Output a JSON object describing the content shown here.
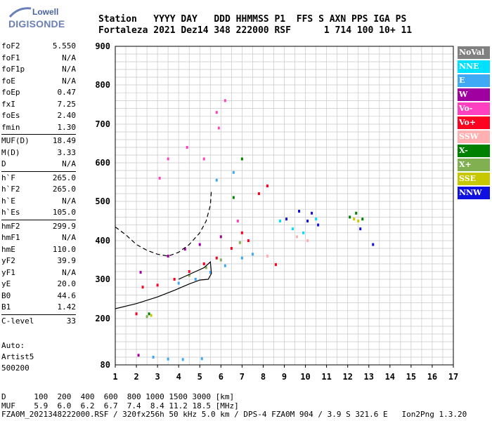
{
  "logo": {
    "line1": "Lowell",
    "line2": "DIGISONDE"
  },
  "header": {
    "line1": "Station   YYYY DAY   DDD HHMMSS P1  FFS S AXN PPS IGA PS",
    "line2": "Fortaleza 2021 Dez14 348 222000 RSF      1 714 100 10+ 11"
  },
  "params": {
    "group1": [
      {
        "name": "foF2",
        "value": "5.550"
      },
      {
        "name": "foF1",
        "value": "N/A"
      },
      {
        "name": "foF1p",
        "value": "N/A"
      },
      {
        "name": "foE",
        "value": "N/A"
      },
      {
        "name": "foEp",
        "value": "0.47"
      },
      {
        "name": "fxI",
        "value": "7.25"
      },
      {
        "name": "foEs",
        "value": "2.40"
      },
      {
        "name": "fmin",
        "value": "1.30"
      }
    ],
    "group2": [
      {
        "name": "MUF(D)",
        "value": "18.49"
      },
      {
        "name": "M(D)",
        "value": "3.33"
      },
      {
        "name": "D",
        "value": "N/A"
      }
    ],
    "group3": [
      {
        "name": "h`F",
        "value": "265.0"
      },
      {
        "name": "h`F2",
        "value": "265.0"
      },
      {
        "name": "h`E",
        "value": "N/A"
      },
      {
        "name": "h`Es",
        "value": "105.0"
      }
    ],
    "group4": [
      {
        "name": "hmF2",
        "value": "299.9"
      },
      {
        "name": "hmF1",
        "value": "N/A"
      },
      {
        "name": "hmE",
        "value": "110.0"
      },
      {
        "name": "yF2",
        "value": "39.9"
      },
      {
        "name": "yF1",
        "value": "N/A"
      },
      {
        "name": "yE",
        "value": "20.0"
      },
      {
        "name": "B0",
        "value": "44.6"
      },
      {
        "name": "B1",
        "value": "1.42"
      }
    ],
    "group5": [
      {
        "name": "C-level",
        "value": "33"
      }
    ]
  },
  "auto": {
    "line1": "Auto:",
    "line2": "Artist5",
    "line3": "500200"
  },
  "legend": [
    {
      "label": "NoVal",
      "color": "#808080"
    },
    {
      "label": "NNE",
      "color": "#00e0ff"
    },
    {
      "label": "E",
      "color": "#3fa9f5"
    },
    {
      "label": "W",
      "color": "#a000a0"
    },
    {
      "label": "Vo-",
      "color": "#ff40c0"
    },
    {
      "label": "Vo+",
      "color": "#ff0020"
    },
    {
      "label": "SSW",
      "color": "#ffb0b0"
    },
    {
      "label": "X-",
      "color": "#008000"
    },
    {
      "label": "X+",
      "color": "#80b050"
    },
    {
      "label": "SSE",
      "color": "#c8c800"
    },
    {
      "label": "NNW",
      "color": "#1010e0"
    }
  ],
  "footer": {
    "line1": "D      100  200  400  600  800 1000 1500 3000 [km]",
    "line2": "MUF    5.9  6.0  6.2  6.7  7.4  8.4 11.2 18.5 [MHz]",
    "line3": "FZA0M_2021348222000.RSF / 320fx256h 50 kHz 5.0 km / DPS-4 FZA0M 904 / 3.9 S 321.6 E   Ion2Png 1.3.20"
  },
  "chart_data": {
    "type": "scatter",
    "title": "",
    "xlabel": "",
    "ylabel": "",
    "xlim": [
      1,
      17
    ],
    "ylim": [
      80,
      900
    ],
    "xticks": [
      "1",
      "2",
      "3",
      "4",
      "5",
      "6",
      "7",
      "8",
      "9",
      "10",
      "11",
      "12",
      "13",
      "14",
      "15",
      "16",
      "17"
    ],
    "yticks": [
      "80",
      "200",
      "300",
      "400",
      "500",
      "600",
      "700",
      "800",
      "900"
    ],
    "grid": true,
    "legend_position": "right",
    "series": [
      {
        "name": "E",
        "color": "#3fa9f5",
        "points": [
          [
            4.0,
            290
          ],
          [
            4.8,
            300
          ],
          [
            5.5,
            318
          ],
          [
            6.2,
            335
          ],
          [
            7.0,
            355
          ],
          [
            7.5,
            365
          ],
          [
            5.8,
            555
          ],
          [
            6.6,
            575
          ],
          [
            2.8,
            100
          ],
          [
            3.5,
            95
          ],
          [
            4.2,
            94
          ],
          [
            5.1,
            96
          ]
        ]
      },
      {
        "name": "Vo+",
        "color": "#ff0020",
        "points": [
          [
            2.3,
            280
          ],
          [
            3.0,
            285
          ],
          [
            3.8,
            300
          ],
          [
            4.5,
            320
          ],
          [
            5.2,
            340
          ],
          [
            5.8,
            355
          ],
          [
            6.5,
            380
          ],
          [
            7.0,
            420
          ],
          [
            7.8,
            520
          ],
          [
            8.2,
            540
          ],
          [
            7.3,
            400
          ],
          [
            8.6,
            338
          ],
          [
            2.0,
            212
          ]
        ]
      },
      {
        "name": "W",
        "color": "#a000a0",
        "points": [
          [
            2.2,
            318
          ],
          [
            3.5,
            360
          ],
          [
            4.3,
            378
          ],
          [
            5.0,
            390
          ],
          [
            6.0,
            410
          ],
          [
            2.1,
            105
          ]
        ]
      },
      {
        "name": "Vo-",
        "color": "#ff40c0",
        "points": [
          [
            5.8,
            730
          ],
          [
            6.2,
            760
          ],
          [
            5.9,
            690
          ],
          [
            3.1,
            560
          ],
          [
            3.5,
            610
          ],
          [
            4.4,
            640
          ],
          [
            5.2,
            610
          ],
          [
            6.8,
            450
          ]
        ]
      },
      {
        "name": "NNW",
        "color": "#1010e0",
        "points": [
          [
            9.1,
            455
          ],
          [
            10.1,
            450
          ],
          [
            10.6,
            440
          ],
          [
            9.7,
            475
          ],
          [
            10.3,
            470
          ],
          [
            12.6,
            430
          ],
          [
            13.2,
            390
          ]
        ]
      },
      {
        "name": "NNE",
        "color": "#00e0ff",
        "points": [
          [
            8.8,
            450
          ],
          [
            9.4,
            430
          ],
          [
            10.5,
            455
          ],
          [
            9.9,
            420
          ]
        ]
      },
      {
        "name": "X-",
        "color": "#008000",
        "points": [
          [
            12.1,
            460
          ],
          [
            12.4,
            470
          ],
          [
            12.7,
            455
          ],
          [
            6.6,
            510
          ],
          [
            7.0,
            610
          ],
          [
            2.6,
            212
          ]
        ]
      },
      {
        "name": "X+",
        "color": "#80b050",
        "points": [
          [
            4.5,
            310
          ],
          [
            5.3,
            330
          ],
          [
            6.0,
            350
          ],
          [
            6.9,
            395
          ],
          [
            2.5,
            205
          ]
        ]
      },
      {
        "name": "SSW",
        "color": "#ffb0b0",
        "points": [
          [
            9.6,
            410
          ],
          [
            10.1,
            400
          ],
          [
            8.2,
            360
          ]
        ]
      },
      {
        "name": "SSE",
        "color": "#c8c800",
        "points": [
          [
            12.3,
            455
          ],
          [
            12.5,
            450
          ],
          [
            2.7,
            208
          ]
        ]
      }
    ],
    "traces": [
      {
        "name": "dashed",
        "style": "dashed",
        "points": [
          [
            1.0,
            435
          ],
          [
            1.5,
            415
          ],
          [
            2.0,
            390
          ],
          [
            2.5,
            375
          ],
          [
            3.0,
            365
          ],
          [
            3.5,
            360
          ],
          [
            4.0,
            370
          ],
          [
            4.5,
            390
          ],
          [
            5.0,
            420
          ],
          [
            5.3,
            450
          ],
          [
            5.5,
            490
          ],
          [
            5.55,
            530
          ]
        ]
      },
      {
        "name": "profile",
        "style": "solid",
        "points": [
          [
            1.0,
            225
          ],
          [
            2.0,
            238
          ],
          [
            3.0,
            255
          ],
          [
            3.8,
            272
          ],
          [
            4.5,
            288
          ],
          [
            5.0,
            298
          ],
          [
            5.4,
            300
          ],
          [
            5.55,
            315
          ],
          [
            5.5,
            345
          ],
          [
            5.2,
            330
          ],
          [
            4.8,
            320
          ],
          [
            4.4,
            310
          ],
          [
            4.0,
            300
          ]
        ]
      }
    ]
  }
}
